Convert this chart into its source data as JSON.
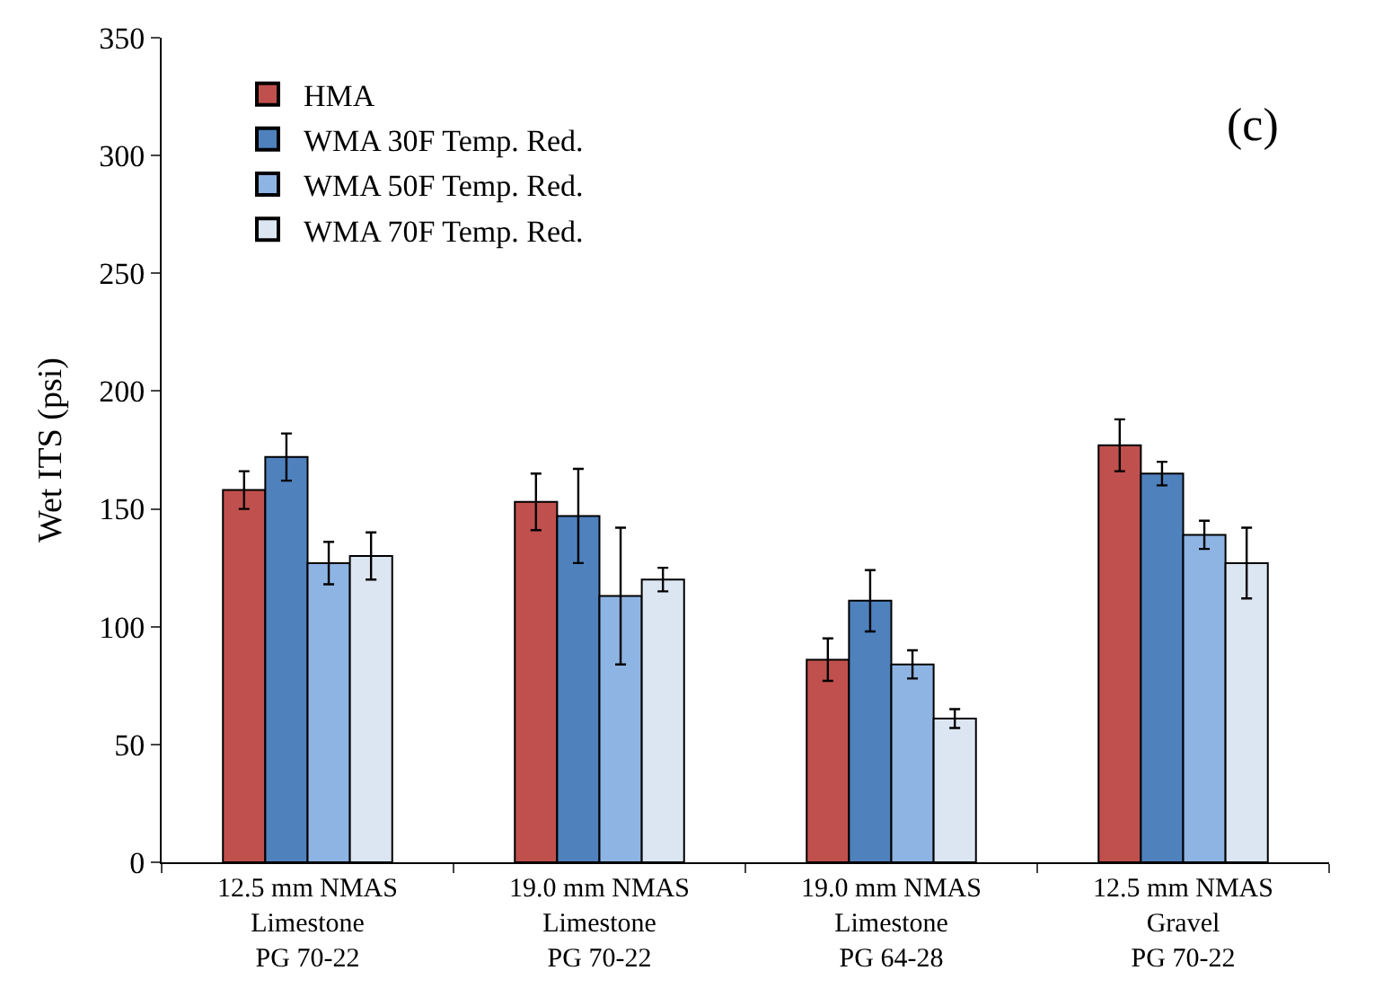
{
  "chart_data": {
    "type": "bar",
    "ylabel": "Wet ITS (psi)",
    "annotations": [
      "(c)"
    ],
    "categories": [
      "12.5 mm NMAS\nLimestone\nPG 70-22",
      "19.0 mm NMAS\nLimestone\nPG 70-22",
      "19.0 mm NMAS\nLimestone\nPG 64-28",
      "12.5 mm NMAS\nGravel\nPG 70-22"
    ],
    "series": [
      {
        "name": "HMA",
        "color": "#c0504d",
        "values": [
          158,
          153,
          86,
          177
        ],
        "errors": [
          8,
          12,
          9,
          11
        ]
      },
      {
        "name": "WMA 30F Temp. Red.",
        "color": "#4f81bd",
        "values": [
          172,
          147,
          111,
          165
        ],
        "errors": [
          10,
          20,
          13,
          5
        ]
      },
      {
        "name": "WMA 50F Temp. Red.",
        "color": "#8eb4e3",
        "values": [
          127,
          113,
          84,
          139
        ],
        "errors": [
          9,
          29,
          6,
          6
        ]
      },
      {
        "name": "WMA 70F Temp. Red.",
        "color": "#dce6f2",
        "values": [
          130,
          120,
          61,
          127
        ],
        "errors": [
          10,
          5,
          4,
          15
        ]
      }
    ],
    "ylim": [
      0,
      350
    ],
    "yticks": [
      0,
      50,
      100,
      150,
      200,
      250,
      300,
      350
    ],
    "legend": "top left"
  }
}
